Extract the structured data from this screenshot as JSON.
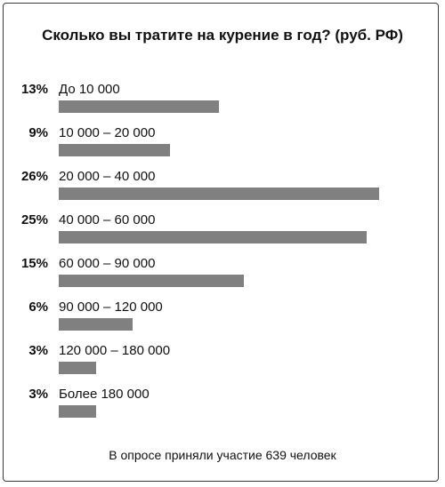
{
  "chart_data": {
    "type": "bar",
    "title": "Сколько вы тратите на курение в год? (руб. РФ)",
    "categories": [
      "До 10 000",
      "10 000 – 20 000",
      "20 000 – 40 000",
      "40 000 – 60 000",
      "60 000 – 90 000",
      "90 000 – 120 000",
      "120 000 – 180 000",
      "Более 180 000"
    ],
    "values": [
      13,
      9,
      26,
      25,
      15,
      6,
      3,
      3
    ],
    "value_labels": [
      "13%",
      "9%",
      "26%",
      "25%",
      "15%",
      "6%",
      "3%",
      "3%"
    ],
    "xlabel": "",
    "ylabel": "",
    "orientation": "horizontal",
    "grid": false,
    "legend": "none",
    "bar_color": "#808080"
  },
  "footer": "В опросе приняли участие 639 человек"
}
